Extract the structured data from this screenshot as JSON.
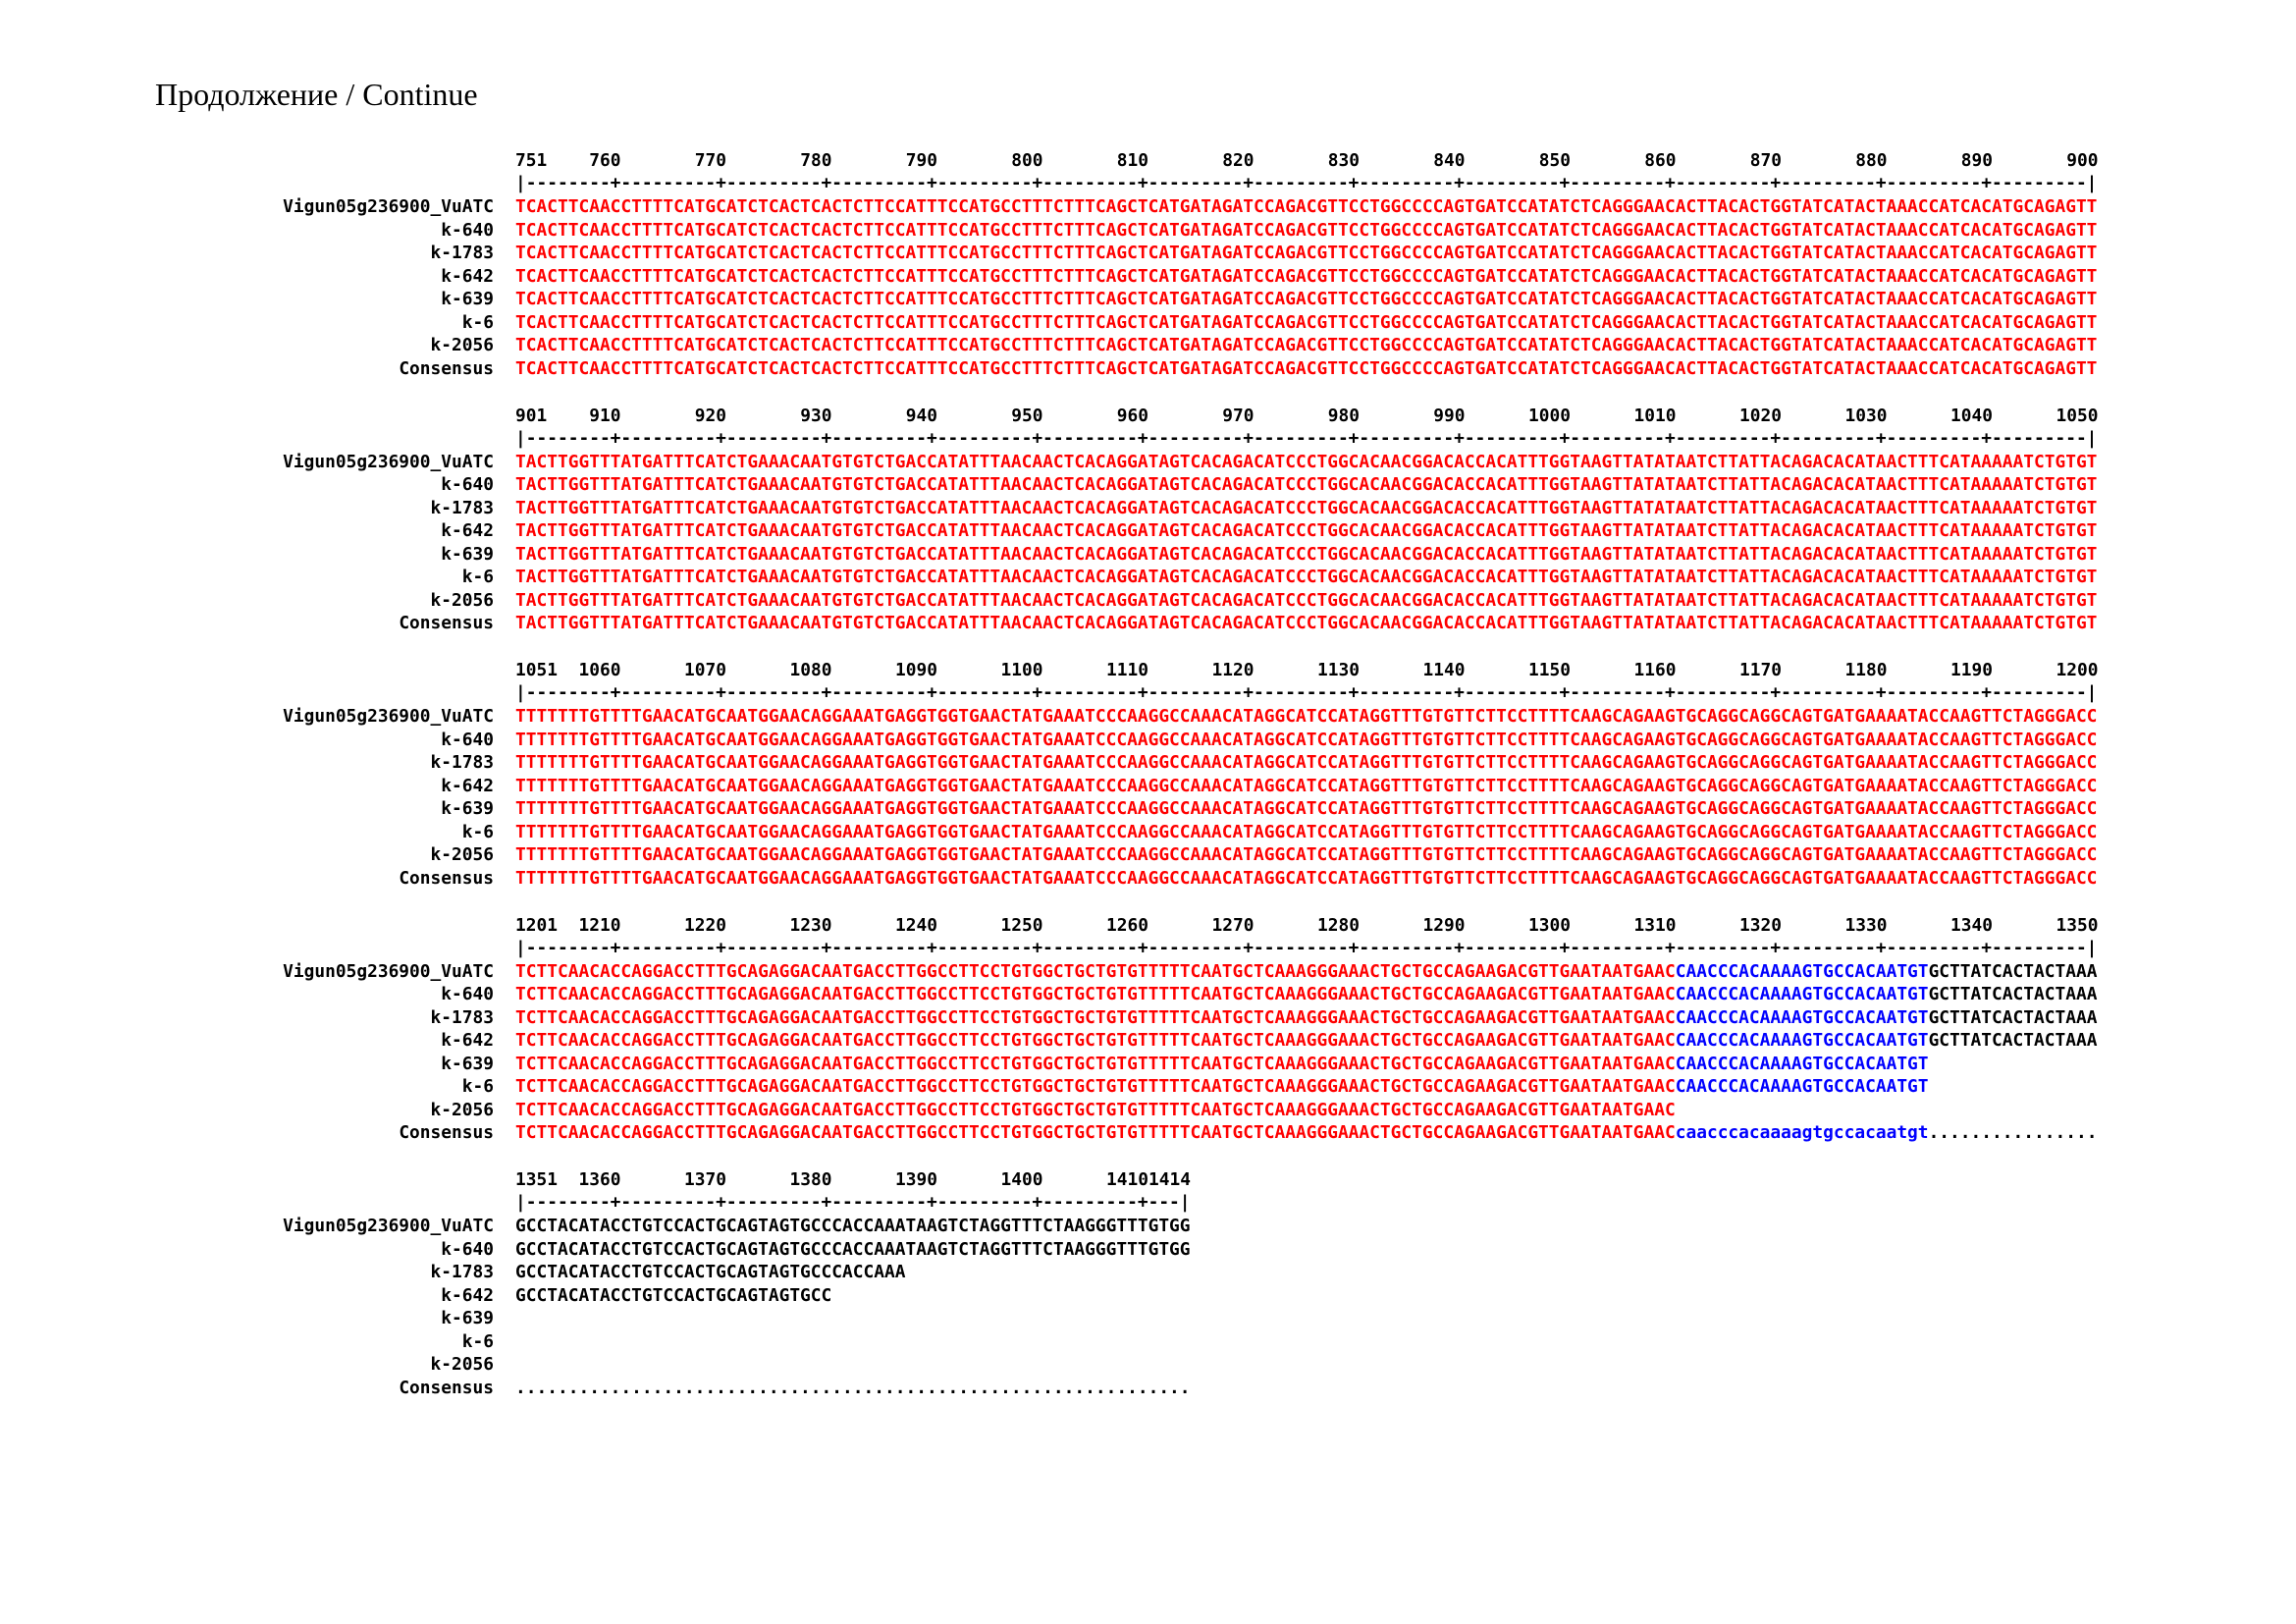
{
  "title": "Продолжение / Continue",
  "colors": {
    "identical": "#ff0000",
    "partial": "#0000ff",
    "unique": "#000000"
  },
  "blocks": [
    {
      "start": 751,
      "labels": [
        "751",
        "760",
        "770",
        "780",
        "790",
        "800",
        "810",
        "820",
        "830",
        "840",
        "850",
        "860",
        "870",
        "880",
        "890",
        "900"
      ],
      "ruler": "|--------+---------+---------+---------+---------+---------+---------+---------+---------+---------+---------+---------+---------+---------+---------|",
      "rows": [
        {
          "name": "Vigun05g236900_VuATC",
          "segments": [
            {
              "text": "TCACTTCAACCTTTTCATGCATCTCACTCACTCTTCCATTTCCATGCCTTTCTTTCAGCTCATGATAGATCCAGACGTTCCTGGCCCCAGTGATCCATATCTCAGGGAACACTTACACTGGTATCATACTAAACCATCACATGCAGAGTT",
              "color": "#ff0000"
            }
          ]
        },
        {
          "name": "k-640",
          "segments": [
            {
              "text": "TCACTTCAACCTTTTCATGCATCTCACTCACTCTTCCATTTCCATGCCTTTCTTTCAGCTCATGATAGATCCAGACGTTCCTGGCCCCAGTGATCCATATCTCAGGGAACACTTACACTGGTATCATACTAAACCATCACATGCAGAGTT",
              "color": "#ff0000"
            }
          ]
        },
        {
          "name": "k-1783",
          "segments": [
            {
              "text": "TCACTTCAACCTTTTCATGCATCTCACTCACTCTTCCATTTCCATGCCTTTCTTTCAGCTCATGATAGATCCAGACGTTCCTGGCCCCAGTGATCCATATCTCAGGGAACACTTACACTGGTATCATACTAAACCATCACATGCAGAGTT",
              "color": "#ff0000"
            }
          ]
        },
        {
          "name": "k-642",
          "segments": [
            {
              "text": "TCACTTCAACCTTTTCATGCATCTCACTCACTCTTCCATTTCCATGCCTTTCTTTCAGCTCATGATAGATCCAGACGTTCCTGGCCCCAGTGATCCATATCTCAGGGAACACTTACACTGGTATCATACTAAACCATCACATGCAGAGTT",
              "color": "#ff0000"
            }
          ]
        },
        {
          "name": "k-639",
          "segments": [
            {
              "text": "TCACTTCAACCTTTTCATGCATCTCACTCACTCTTCCATTTCCATGCCTTTCTTTCAGCTCATGATAGATCCAGACGTTCCTGGCCCCAGTGATCCATATCTCAGGGAACACTTACACTGGTATCATACTAAACCATCACATGCAGAGTT",
              "color": "#ff0000"
            }
          ]
        },
        {
          "name": "k-6",
          "segments": [
            {
              "text": "TCACTTCAACCTTTTCATGCATCTCACTCACTCTTCCATTTCCATGCCTTTCTTTCAGCTCATGATAGATCCAGACGTTCCTGGCCCCAGTGATCCATATCTCAGGGAACACTTACACTGGTATCATACTAAACCATCACATGCAGAGTT",
              "color": "#ff0000"
            }
          ]
        },
        {
          "name": "k-2056",
          "segments": [
            {
              "text": "TCACTTCAACCTTTTCATGCATCTCACTCACTCTTCCATTTCCATGCCTTTCTTTCAGCTCATGATAGATCCAGACGTTCCTGGCCCCAGTGATCCATATCTCAGGGAACACTTACACTGGTATCATACTAAACCATCACATGCAGAGTT",
              "color": "#ff0000"
            }
          ]
        },
        {
          "name": "Consensus",
          "segments": [
            {
              "text": "TCACTTCAACCTTTTCATGCATCTCACTCACTCTTCCATTTCCATGCCTTTCTTTCAGCTCATGATAGATCCAGACGTTCCTGGCCCCAGTGATCCATATCTCAGGGAACACTTACACTGGTATCATACTAAACCATCACATGCAGAGTT",
              "color": "#ff0000"
            }
          ]
        }
      ]
    },
    {
      "start": 901,
      "labels": [
        "901",
        "910",
        "920",
        "930",
        "940",
        "950",
        "960",
        "970",
        "980",
        "990",
        "1000",
        "1010",
        "1020",
        "1030",
        "1040",
        "1050"
      ],
      "ruler": "|--------+---------+---------+---------+---------+---------+---------+---------+---------+---------+---------+---------+---------+---------+---------|",
      "rows": [
        {
          "name": "Vigun05g236900_VuATC",
          "segments": [
            {
              "text": "TACTTGGTTTATGATTTCATCTGAAACAATGTGTCTGACCATATTTAACAACTCACAGGATAGTCACAGACATCCCTGGCACAACGGACACCACATTTGGTAAGTTATATAATCTTATTACAGACACATAACTTTCATAAAAATCTGTGT",
              "color": "#ff0000"
            }
          ]
        },
        {
          "name": "k-640",
          "segments": [
            {
              "text": "TACTTGGTTTATGATTTCATCTGAAACAATGTGTCTGACCATATTTAACAACTCACAGGATAGTCACAGACATCCCTGGCACAACGGACACCACATTTGGTAAGTTATATAATCTTATTACAGACACATAACTTTCATAAAAATCTGTGT",
              "color": "#ff0000"
            }
          ]
        },
        {
          "name": "k-1783",
          "segments": [
            {
              "text": "TACTTGGTTTATGATTTCATCTGAAACAATGTGTCTGACCATATTTAACAACTCACAGGATAGTCACAGACATCCCTGGCACAACGGACACCACATTTGGTAAGTTATATAATCTTATTACAGACACATAACTTTCATAAAAATCTGTGT",
              "color": "#ff0000"
            }
          ]
        },
        {
          "name": "k-642",
          "segments": [
            {
              "text": "TACTTGGTTTATGATTTCATCTGAAACAATGTGTCTGACCATATTTAACAACTCACAGGATAGTCACAGACATCCCTGGCACAACGGACACCACATTTGGTAAGTTATATAATCTTATTACAGACACATAACTTTCATAAAAATCTGTGT",
              "color": "#ff0000"
            }
          ]
        },
        {
          "name": "k-639",
          "segments": [
            {
              "text": "TACTTGGTTTATGATTTCATCTGAAACAATGTGTCTGACCATATTTAACAACTCACAGGATAGTCACAGACATCCCTGGCACAACGGACACCACATTTGGTAAGTTATATAATCTTATTACAGACACATAACTTTCATAAAAATCTGTGT",
              "color": "#ff0000"
            }
          ]
        },
        {
          "name": "k-6",
          "segments": [
            {
              "text": "TACTTGGTTTATGATTTCATCTGAAACAATGTGTCTGACCATATTTAACAACTCACAGGATAGTCACAGACATCCCTGGCACAACGGACACCACATTTGGTAAGTTATATAATCTTATTACAGACACATAACTTTCATAAAAATCTGTGT",
              "color": "#ff0000"
            }
          ]
        },
        {
          "name": "k-2056",
          "segments": [
            {
              "text": "TACTTGGTTTATGATTTCATCTGAAACAATGTGTCTGACCATATTTAACAACTCACAGGATAGTCACAGACATCCCTGGCACAACGGACACCACATTTGGTAAGTTATATAATCTTATTACAGACACATAACTTTCATAAAAATCTGTGT",
              "color": "#ff0000"
            }
          ]
        },
        {
          "name": "Consensus",
          "segments": [
            {
              "text": "TACTTGGTTTATGATTTCATCTGAAACAATGTGTCTGACCATATTTAACAACTCACAGGATAGTCACAGACATCCCTGGCACAACGGACACCACATTTGGTAAGTTATATAATCTTATTACAGACACATAACTTTCATAAAAATCTGTGT",
              "color": "#ff0000"
            }
          ]
        }
      ]
    },
    {
      "start": 1051,
      "labels": [
        "1051",
        "1060",
        "1070",
        "1080",
        "1090",
        "1100",
        "1110",
        "1120",
        "1130",
        "1140",
        "1150",
        "1160",
        "1170",
        "1180",
        "1190",
        "1200"
      ],
      "ruler": "|--------+---------+---------+---------+---------+---------+---------+---------+---------+---------+---------+---------+---------+---------+---------|",
      "rows": [
        {
          "name": "Vigun05g236900_VuATC",
          "segments": [
            {
              "text": "TTTTTTTGTTTTGAACATGCAATGGAACAGGAAATGAGGTGGTGAACTATGAAATCCCAAGGCCAAACATAGGCATCCATAGGTTTGTGTTCTTCCTTTTCAAGCAGAAGTGCAGGCAGGCAGTGATGAAAATACCAAGTTCTAGGGACC",
              "color": "#ff0000"
            }
          ]
        },
        {
          "name": "k-640",
          "segments": [
            {
              "text": "TTTTTTTGTTTTGAACATGCAATGGAACAGGAAATGAGGTGGTGAACTATGAAATCCCAAGGCCAAACATAGGCATCCATAGGTTTGTGTTCTTCCTTTTCAAGCAGAAGTGCAGGCAGGCAGTGATGAAAATACCAAGTTCTAGGGACC",
              "color": "#ff0000"
            }
          ]
        },
        {
          "name": "k-1783",
          "segments": [
            {
              "text": "TTTTTTTGTTTTGAACATGCAATGGAACAGGAAATGAGGTGGTGAACTATGAAATCCCAAGGCCAAACATAGGCATCCATAGGTTTGTGTTCTTCCTTTTCAAGCAGAAGTGCAGGCAGGCAGTGATGAAAATACCAAGTTCTAGGGACC",
              "color": "#ff0000"
            }
          ]
        },
        {
          "name": "k-642",
          "segments": [
            {
              "text": "TTTTTTTGTTTTGAACATGCAATGGAACAGGAAATGAGGTGGTGAACTATGAAATCCCAAGGCCAAACATAGGCATCCATAGGTTTGTGTTCTTCCTTTTCAAGCAGAAGTGCAGGCAGGCAGTGATGAAAATACCAAGTTCTAGGGACC",
              "color": "#ff0000"
            }
          ]
        },
        {
          "name": "k-639",
          "segments": [
            {
              "text": "TTTTTTTGTTTTGAACATGCAATGGAACAGGAAATGAGGTGGTGAACTATGAAATCCCAAGGCCAAACATAGGCATCCATAGGTTTGTGTTCTTCCTTTTCAAGCAGAAGTGCAGGCAGGCAGTGATGAAAATACCAAGTTCTAGGGACC",
              "color": "#ff0000"
            }
          ]
        },
        {
          "name": "k-6",
          "segments": [
            {
              "text": "TTTTTTTGTTTTGAACATGCAATGGAACAGGAAATGAGGTGGTGAACTATGAAATCCCAAGGCCAAACATAGGCATCCATAGGTTTGTGTTCTTCCTTTTCAAGCAGAAGTGCAGGCAGGCAGTGATGAAAATACCAAGTTCTAGGGACC",
              "color": "#ff0000"
            }
          ]
        },
        {
          "name": "k-2056",
          "segments": [
            {
              "text": "TTTTTTTGTTTTGAACATGCAATGGAACAGGAAATGAGGTGGTGAACTATGAAATCCCAAGGCCAAACATAGGCATCCATAGGTTTGTGTTCTTCCTTTTCAAGCAGAAGTGCAGGCAGGCAGTGATGAAAATACCAAGTTCTAGGGACC",
              "color": "#ff0000"
            }
          ]
        },
        {
          "name": "Consensus",
          "segments": [
            {
              "text": "TTTTTTTGTTTTGAACATGCAATGGAACAGGAAATGAGGTGGTGAACTATGAAATCCCAAGGCCAAACATAGGCATCCATAGGTTTGTGTTCTTCCTTTTCAAGCAGAAGTGCAGGCAGGCAGTGATGAAAATACCAAGTTCTAGGGACC",
              "color": "#ff0000"
            }
          ]
        }
      ]
    },
    {
      "start": 1201,
      "labels": [
        "1201",
        "1210",
        "1220",
        "1230",
        "1240",
        "1250",
        "1260",
        "1270",
        "1280",
        "1290",
        "1300",
        "1310",
        "1320",
        "1330",
        "1340",
        "1350"
      ],
      "ruler": "|--------+---------+---------+---------+---------+---------+---------+---------+---------+---------+---------+---------+---------+---------+---------|",
      "rows": [
        {
          "name": "Vigun05g236900_VuATC",
          "segments": [
            {
              "text": "TCTTCAACACCAGGACCTTTGCAGAGGACAATGACCTTGGCCTTCCTGTGGCTGCTGTGTTTTTCAATGCTCAAAGGGAAACTGCTGCCAGAAGACGTTGAATAATGAAC",
              "color": "#ff0000"
            },
            {
              "text": "CAACCCACAAAAGTGCCACAATGT",
              "color": "#0000ff"
            },
            {
              "text": "GCTTATCACTACTAAA",
              "color": "#000000"
            }
          ]
        },
        {
          "name": "k-640",
          "segments": [
            {
              "text": "TCTTCAACACCAGGACCTTTGCAGAGGACAATGACCTTGGCCTTCCTGTGGCTGCTGTGTTTTTCAATGCTCAAAGGGAAACTGCTGCCAGAAGACGTTGAATAATGAAC",
              "color": "#ff0000"
            },
            {
              "text": "CAACCCACAAAAGTGCCACAATGT",
              "color": "#0000ff"
            },
            {
              "text": "GCTTATCACTACTAAA",
              "color": "#000000"
            }
          ]
        },
        {
          "name": "k-1783",
          "segments": [
            {
              "text": "TCTTCAACACCAGGACCTTTGCAGAGGACAATGACCTTGGCCTTCCTGTGGCTGCTGTGTTTTTCAATGCTCAAAGGGAAACTGCTGCCAGAAGACGTTGAATAATGAAC",
              "color": "#ff0000"
            },
            {
              "text": "CAACCCACAAAAGTGCCACAATGT",
              "color": "#0000ff"
            },
            {
              "text": "GCTTATCACTACTAAA",
              "color": "#000000"
            }
          ]
        },
        {
          "name": "k-642",
          "segments": [
            {
              "text": "TCTTCAACACCAGGACCTTTGCAGAGGACAATGACCTTGGCCTTCCTGTGGCTGCTGTGTTTTTCAATGCTCAAAGGGAAACTGCTGCCAGAAGACGTTGAATAATGAAC",
              "color": "#ff0000"
            },
            {
              "text": "CAACCCACAAAAGTGCCACAATGT",
              "color": "#0000ff"
            },
            {
              "text": "GCTTATCACTACTAAA",
              "color": "#000000"
            }
          ]
        },
        {
          "name": "k-639",
          "segments": [
            {
              "text": "TCTTCAACACCAGGACCTTTGCAGAGGACAATGACCTTGGCCTTCCTGTGGCTGCTGTGTTTTTCAATGCTCAAAGGGAAACTGCTGCCAGAAGACGTTGAATAATGAAC",
              "color": "#ff0000"
            },
            {
              "text": "CAACCCACAAAAGTGCCACAATGT",
              "color": "#0000ff"
            }
          ]
        },
        {
          "name": "k-6",
          "segments": [
            {
              "text": "TCTTCAACACCAGGACCTTTGCAGAGGACAATGACCTTGGCCTTCCTGTGGCTGCTGTGTTTTTCAATGCTCAAAGGGAAACTGCTGCCAGAAGACGTTGAATAATGAAC",
              "color": "#ff0000"
            },
            {
              "text": "CAACCCACAAAAGTGCCACAATGT",
              "color": "#0000ff"
            }
          ]
        },
        {
          "name": "k-2056",
          "segments": [
            {
              "text": "TCTTCAACACCAGGACCTTTGCAGAGGACAATGACCTTGGCCTTCCTGTGGCTGCTGTGTTTTTCAATGCTCAAAGGGAAACTGCTGCCAGAAGACGTTGAATAATGAAC",
              "color": "#ff0000"
            }
          ]
        },
        {
          "name": "Consensus",
          "segments": [
            {
              "text": "TCTTCAACACCAGGACCTTTGCAGAGGACAATGACCTTGGCCTTCCTGTGGCTGCTGTGTTTTTCAATGCTCAAAGGGAAACTGCTGCCAGAAGACGTTGAATAATGAAC",
              "color": "#ff0000"
            },
            {
              "text": "caacccacaaaagtgccacaatgt",
              "color": "#0000ff"
            },
            {
              "text": "................",
              "color": "#000000"
            }
          ]
        }
      ]
    },
    {
      "start": 1351,
      "labels": [
        "1351",
        "1360",
        "1370",
        "1380",
        "1390",
        "1400",
        "1410",
        "1414"
      ],
      "ruler": "|--------+---------+---------+---------+---------+---------+---|",
      "rows": [
        {
          "name": "Vigun05g236900_VuATC",
          "segments": [
            {
              "text": "GCCTACATACCTGTCCACTGCAGTAGTGCCCACCAAATAAGTCTAGGTTTCTAAGGGTTTGTGG",
              "color": "#000000"
            }
          ]
        },
        {
          "name": "k-640",
          "segments": [
            {
              "text": "GCCTACATACCTGTCCACTGCAGTAGTGCCCACCAAATAAGTCTAGGTTTCTAAGGGTTTGTGG",
              "color": "#000000"
            }
          ]
        },
        {
          "name": "k-1783",
          "segments": [
            {
              "text": "GCCTACATACCTGTCCACTGCAGTAGTGCCCACCAAA",
              "color": "#000000"
            }
          ]
        },
        {
          "name": "k-642",
          "segments": [
            {
              "text": "GCCTACATACCTGTCCACTGCAGTAGTGCC",
              "color": "#000000"
            }
          ]
        },
        {
          "name": "k-639",
          "segments": []
        },
        {
          "name": "k-6",
          "segments": []
        },
        {
          "name": "k-2056",
          "segments": []
        },
        {
          "name": "Consensus",
          "segments": [
            {
              "text": "................................................................",
              "color": "#000000"
            }
          ]
        }
      ]
    }
  ]
}
